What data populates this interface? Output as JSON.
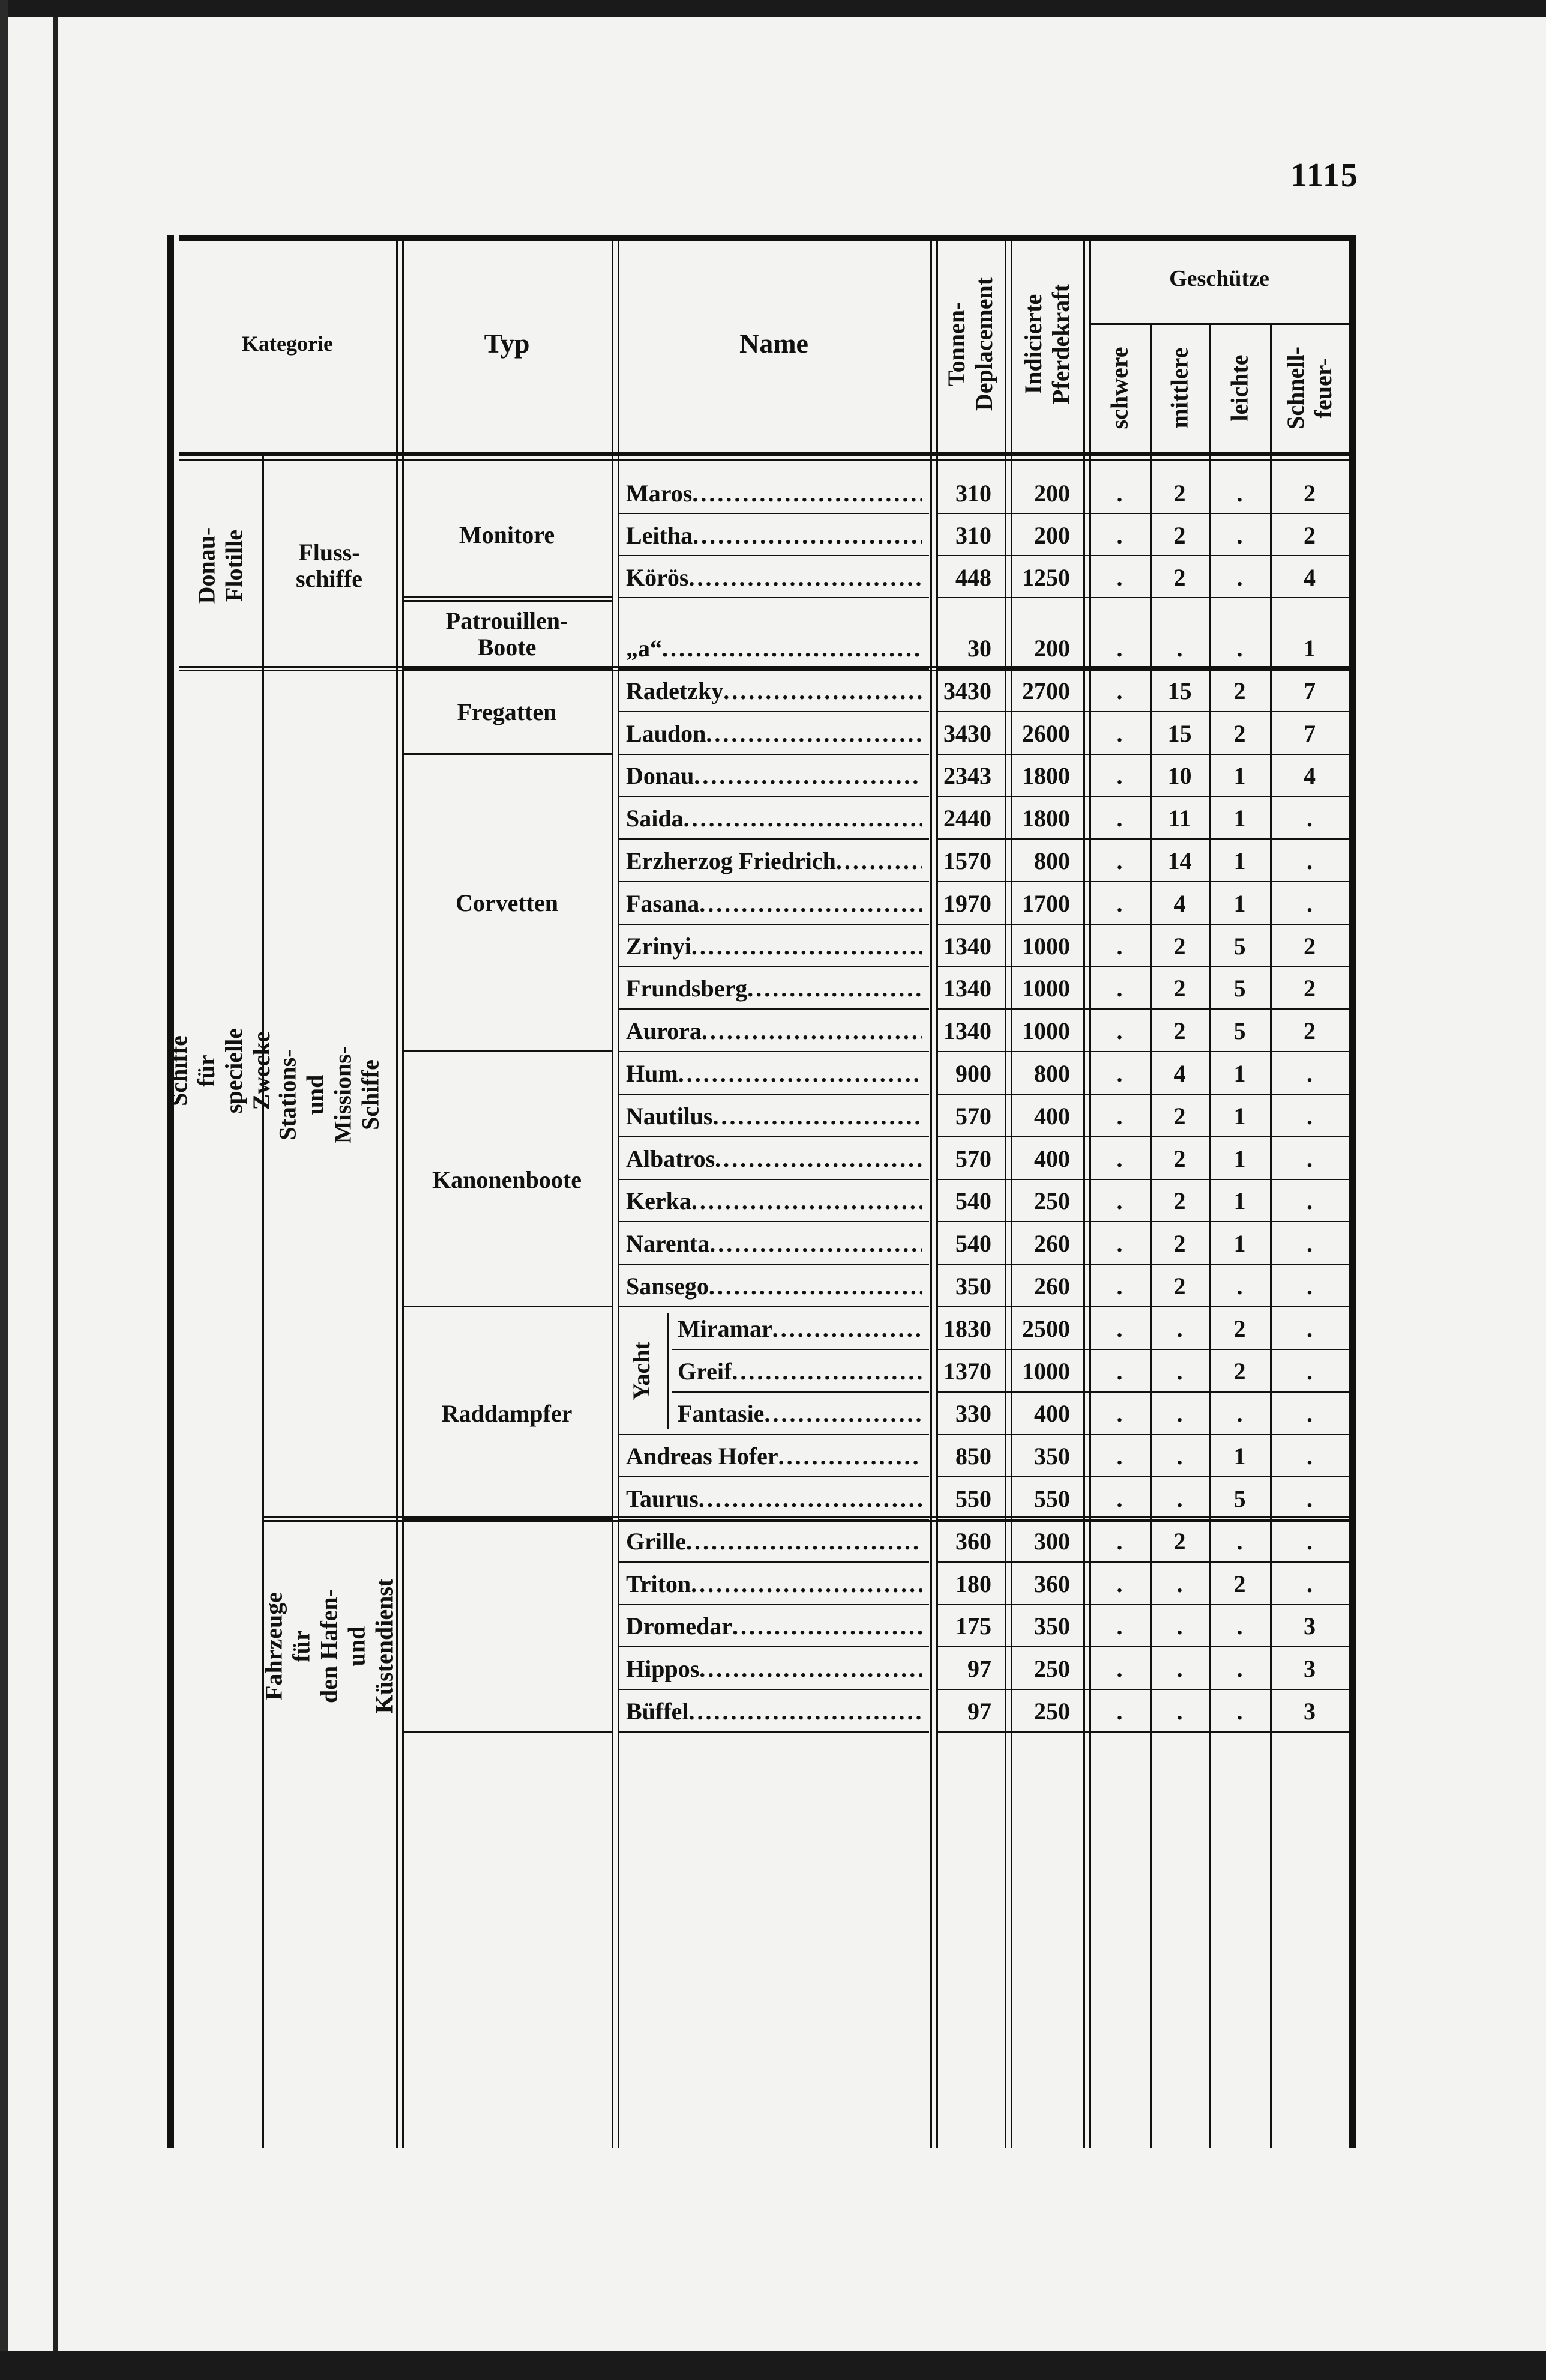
{
  "page_number": "1115",
  "header": {
    "kategorie": "Kategorie",
    "typ": "Typ",
    "name": "Name",
    "tonnen": "Tonnen-\nDeplacement",
    "pferdekraft": "Indicierte\nPferdekraft",
    "geschuetze": "Geschütze",
    "schwere": "schwere",
    "mittlere": "mittlere",
    "leichte": "leichte",
    "schnellfeuer": "Schnell-\nfeuer-"
  },
  "kategorien": [
    {
      "label": "Donau-Flotille",
      "rows": 4
    },
    {
      "label": "Schiffe für specielle Zwecke",
      "rows": 25
    }
  ],
  "unterkategorien": [
    {
      "label": "Fluss-\nschiffe",
      "rows": 4,
      "vertical": false
    },
    {
      "label": "Stations- und Missions-Schiffe",
      "rows": 20,
      "vertical": true
    },
    {
      "label": "Fahrzeuge für\nden Hafen- und\nKüstendienst",
      "rows": 5,
      "vertical": true
    }
  ],
  "typen": [
    {
      "label": "Monitore",
      "rows": 3
    },
    {
      "label": "Patrouillen-\nBoote",
      "rows": 1
    },
    {
      "label": "Fregatten",
      "rows": 2
    },
    {
      "label": "Corvetten",
      "rows": 7
    },
    {
      "label": "Kanonenboote",
      "rows": 6
    },
    {
      "label": "Raddampfer",
      "rows": 5
    },
    {
      "label": "",
      "rows": 5
    }
  ],
  "yacht_label": "Yacht",
  "rows": [
    {
      "name": "Maros",
      "tonnen": "310",
      "pferdekraft": "200",
      "schwere": ".",
      "mittlere": "2",
      "leichte": ".",
      "schnellfeuer": "2"
    },
    {
      "name": "Leitha",
      "tonnen": "310",
      "pferdekraft": "200",
      "schwere": ".",
      "mittlere": "2",
      "leichte": ".",
      "schnellfeuer": "2"
    },
    {
      "name": "Körös",
      "tonnen": "448",
      "pferdekraft": "1250",
      "schwere": ".",
      "mittlere": "2",
      "leichte": ".",
      "schnellfeuer": "4"
    },
    {
      "name": "„a“",
      "tonnen": "30",
      "pferdekraft": "200",
      "schwere": ".",
      "mittlere": ".",
      "leichte": ".",
      "schnellfeuer": "1"
    },
    {
      "name": "Radetzky",
      "tonnen": "3430",
      "pferdekraft": "2700",
      "schwere": ".",
      "mittlere": "15",
      "leichte": "2",
      "schnellfeuer": "7"
    },
    {
      "name": "Laudon",
      "tonnen": "3430",
      "pferdekraft": "2600",
      "schwere": ".",
      "mittlere": "15",
      "leichte": "2",
      "schnellfeuer": "7"
    },
    {
      "name": "Donau",
      "tonnen": "2343",
      "pferdekraft": "1800",
      "schwere": ".",
      "mittlere": "10",
      "leichte": "1",
      "schnellfeuer": "4"
    },
    {
      "name": "Saida",
      "tonnen": "2440",
      "pferdekraft": "1800",
      "schwere": ".",
      "mittlere": "11",
      "leichte": "1",
      "schnellfeuer": "."
    },
    {
      "name": "Erzherzog Friedrich",
      "tonnen": "1570",
      "pferdekraft": "800",
      "schwere": ".",
      "mittlere": "14",
      "leichte": "1",
      "schnellfeuer": "."
    },
    {
      "name": "Fasana",
      "tonnen": "1970",
      "pferdekraft": "1700",
      "schwere": ".",
      "mittlere": "4",
      "leichte": "1",
      "schnellfeuer": "."
    },
    {
      "name": "Zrinyi",
      "tonnen": "1340",
      "pferdekraft": "1000",
      "schwere": ".",
      "mittlere": "2",
      "leichte": "5",
      "schnellfeuer": "2"
    },
    {
      "name": "Frundsberg",
      "tonnen": "1340",
      "pferdekraft": "1000",
      "schwere": ".",
      "mittlere": "2",
      "leichte": "5",
      "schnellfeuer": "2"
    },
    {
      "name": "Aurora",
      "tonnen": "1340",
      "pferdekraft": "1000",
      "schwere": ".",
      "mittlere": "2",
      "leichte": "5",
      "schnellfeuer": "2"
    },
    {
      "name": "Hum",
      "tonnen": "900",
      "pferdekraft": "800",
      "schwere": ".",
      "mittlere": "4",
      "leichte": "1",
      "schnellfeuer": "."
    },
    {
      "name": "Nautilus",
      "tonnen": "570",
      "pferdekraft": "400",
      "schwere": ".",
      "mittlere": "2",
      "leichte": "1",
      "schnellfeuer": "."
    },
    {
      "name": "Albatros",
      "tonnen": "570",
      "pferdekraft": "400",
      "schwere": ".",
      "mittlere": "2",
      "leichte": "1",
      "schnellfeuer": "."
    },
    {
      "name": "Kerka",
      "tonnen": "540",
      "pferdekraft": "250",
      "schwere": ".",
      "mittlere": "2",
      "leichte": "1",
      "schnellfeuer": "."
    },
    {
      "name": "Narenta",
      "tonnen": "540",
      "pferdekraft": "260",
      "schwere": ".",
      "mittlere": "2",
      "leichte": "1",
      "schnellfeuer": "."
    },
    {
      "name": "Sansego",
      "tonnen": "350",
      "pferdekraft": "260",
      "schwere": ".",
      "mittlere": "2",
      "leichte": ".",
      "schnellfeuer": "."
    },
    {
      "name": "Miramar",
      "tonnen": "1830",
      "pferdekraft": "2500",
      "schwere": ".",
      "mittlere": ".",
      "leichte": "2",
      "schnellfeuer": ".",
      "yacht": true
    },
    {
      "name": "Greif",
      "tonnen": "1370",
      "pferdekraft": "1000",
      "schwere": ".",
      "mittlere": ".",
      "leichte": "2",
      "schnellfeuer": ".",
      "yacht": true
    },
    {
      "name": "Fantasie",
      "tonnen": "330",
      "pferdekraft": "400",
      "schwere": ".",
      "mittlere": ".",
      "leichte": ".",
      "schnellfeuer": ".",
      "yacht": true
    },
    {
      "name": "Andreas Hofer",
      "tonnen": "850",
      "pferdekraft": "350",
      "schwere": ".",
      "mittlere": ".",
      "leichte": "1",
      "schnellfeuer": "."
    },
    {
      "name": "Taurus",
      "tonnen": "550",
      "pferdekraft": "550",
      "schwere": ".",
      "mittlere": ".",
      "leichte": "5",
      "schnellfeuer": "."
    },
    {
      "name": "Grille",
      "tonnen": "360",
      "pferdekraft": "300",
      "schwere": ".",
      "mittlere": "2",
      "leichte": ".",
      "schnellfeuer": "."
    },
    {
      "name": "Triton",
      "tonnen": "180",
      "pferdekraft": "360",
      "schwere": ".",
      "mittlere": ".",
      "leichte": "2",
      "schnellfeuer": "."
    },
    {
      "name": "Dromedar",
      "tonnen": "175",
      "pferdekraft": "350",
      "schwere": ".",
      "mittlere": ".",
      "leichte": ".",
      "schnellfeuer": "3"
    },
    {
      "name": "Hippos",
      "tonnen": "97",
      "pferdekraft": "250",
      "schwere": ".",
      "mittlere": ".",
      "leichte": ".",
      "schnellfeuer": "3"
    },
    {
      "name": "Büffel",
      "tonnen": "97",
      "pferdekraft": "250",
      "schwere": ".",
      "mittlere": ".",
      "leichte": ".",
      "schnellfeuer": "3"
    }
  ]
}
